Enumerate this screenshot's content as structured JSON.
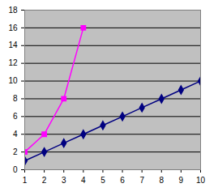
{
  "chart_data": {
    "type": "line",
    "x": [
      1,
      2,
      3,
      4,
      5,
      6,
      7,
      8,
      9,
      10
    ],
    "series": [
      {
        "color": "#ff00ff",
        "marker": "square",
        "values": [
          2,
          4,
          8,
          16,
          null,
          null,
          null,
          null,
          null,
          null
        ]
      },
      {
        "color": "#000080",
        "marker": "diamond",
        "values": [
          1,
          2,
          3,
          4,
          5,
          6,
          7,
          8,
          9,
          10
        ]
      }
    ],
    "xlim": [
      1,
      10
    ],
    "xticks": [
      1,
      2,
      3,
      4,
      5,
      6,
      7,
      8,
      9,
      10
    ],
    "ylim": [
      0,
      18
    ],
    "yticks": [
      0,
      2,
      4,
      6,
      8,
      10,
      12,
      14,
      16,
      18
    ],
    "grid": true
  }
}
